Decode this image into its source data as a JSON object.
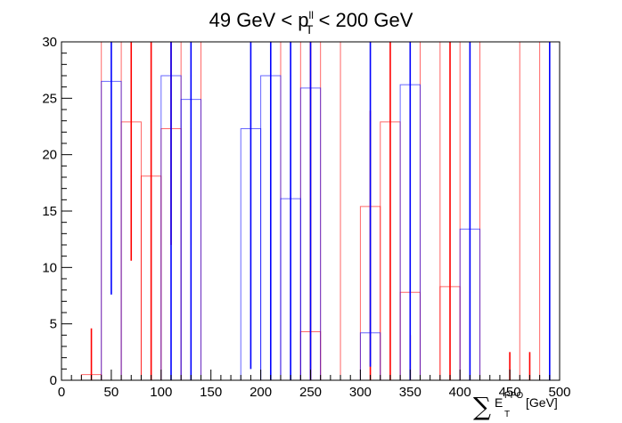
{
  "chart_data": {
    "type": "histogram",
    "title": {
      "prefix": "49 GeV < p",
      "sup": "ll",
      "sub": "T",
      "suffix": " < 200 GeV"
    },
    "xlabel": {
      "symbol": "∑",
      "main": "E",
      "sup": "PPO",
      "sub": "T",
      "unit": "[GeV]"
    },
    "xlim": [
      0,
      500
    ],
    "ylim": [
      0,
      30
    ],
    "x_ticks": [
      0,
      50,
      100,
      150,
      200,
      250,
      300,
      350,
      400,
      450,
      500
    ],
    "y_ticks": [
      0,
      5,
      10,
      15,
      20,
      25,
      30
    ],
    "grid": false,
    "legend": "none",
    "series": [
      {
        "color": "#ff0000",
        "style": "histogram-with-errors",
        "bin_width": 20,
        "bins": [
          {
            "x0": 20,
            "value": 0.5
          },
          {
            "x0": 40,
            "value": 30
          },
          {
            "x0": 60,
            "value": 22.9
          },
          {
            "x0": 80,
            "value": 18.1
          },
          {
            "x0": 100,
            "value": 22.3
          },
          {
            "x0": 120,
            "value": 30
          },
          {
            "x0": 220,
            "value": 30
          },
          {
            "x0": 240,
            "value": 4.3
          },
          {
            "x0": 260,
            "value": 30
          },
          {
            "x0": 300,
            "value": 15.4
          },
          {
            "x0": 320,
            "value": 22.9
          },
          {
            "x0": 340,
            "value": 7.8
          },
          {
            "x0": 360,
            "value": 30
          },
          {
            "x0": 380,
            "value": 8.3
          },
          {
            "x0": 400,
            "value": 30
          },
          {
            "x0": 420,
            "value": 0
          },
          {
            "x0": 460,
            "value": 30
          }
        ],
        "error_bars": [
          {
            "x": 30,
            "low": 0,
            "high": 4.6
          },
          {
            "x": 70,
            "low": 10.6,
            "high": 30
          },
          {
            "x": 90,
            "low": 0,
            "high": 30
          },
          {
            "x": 110,
            "low": 12,
            "high": 30
          },
          {
            "x": 250,
            "low": 0,
            "high": 30
          },
          {
            "x": 310,
            "low": 0,
            "high": 23.9
          },
          {
            "x": 330,
            "low": 0,
            "high": 30
          },
          {
            "x": 350,
            "low": 0,
            "high": 4.0
          },
          {
            "x": 390,
            "low": 0,
            "high": 30
          },
          {
            "x": 450,
            "low": 0,
            "high": 2.5
          },
          {
            "x": 470,
            "low": 0,
            "high": 2.5
          }
        ]
      },
      {
        "color": "#0000ff",
        "style": "histogram-with-errors",
        "bin_width": 20,
        "bins": [
          {
            "x0": 40,
            "value": 26.5
          },
          {
            "x0": 100,
            "value": 27.0
          },
          {
            "x0": 120,
            "value": 24.9
          },
          {
            "x0": 180,
            "value": 22.3
          },
          {
            "x0": 200,
            "value": 27.0
          },
          {
            "x0": 220,
            "value": 16.1
          },
          {
            "x0": 240,
            "value": 25.9
          },
          {
            "x0": 300,
            "value": 4.2
          },
          {
            "x0": 340,
            "value": 26.2
          },
          {
            "x0": 400,
            "value": 13.4
          }
        ],
        "error_bars": [
          {
            "x": 50,
            "low": 7.6,
            "high": 30
          },
          {
            "x": 110,
            "low": 0,
            "high": 30
          },
          {
            "x": 130,
            "low": 0,
            "high": 30
          },
          {
            "x": 190,
            "low": 1.0,
            "high": 30
          },
          {
            "x": 210,
            "low": 0,
            "high": 30
          },
          {
            "x": 230,
            "low": 0,
            "high": 30
          },
          {
            "x": 250,
            "low": 0,
            "high": 30
          },
          {
            "x": 310,
            "low": 1.2,
            "high": 30
          },
          {
            "x": 350,
            "low": 0,
            "high": 30
          },
          {
            "x": 410,
            "low": 0,
            "high": 30
          },
          {
            "x": 490,
            "low": 0,
            "high": 30
          }
        ]
      }
    ]
  }
}
